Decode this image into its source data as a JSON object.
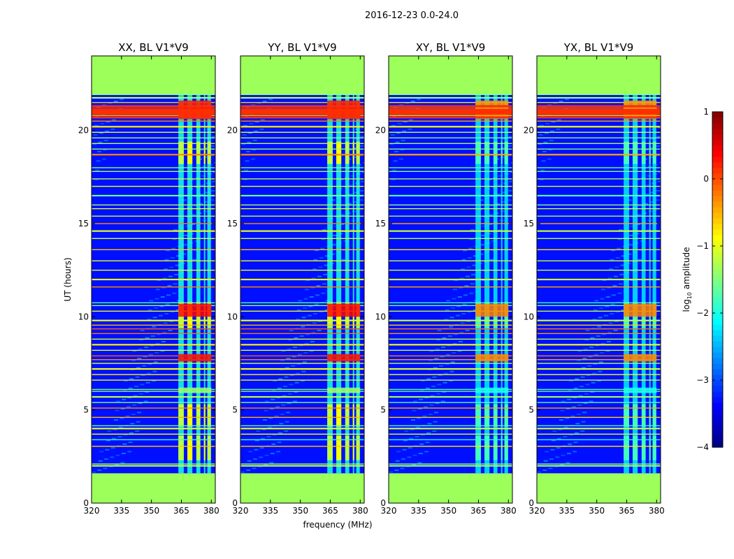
{
  "figure": {
    "suptitle": "2016-12-23 0.0-24.0"
  },
  "chart_data": {
    "type": "heatmap",
    "subtype": "waterfall / dynamic spectrum",
    "shared_xlabel": "frequency (MHz)",
    "shared_ylabel": "UT (hours)",
    "xlim": [
      320,
      382
    ],
    "ylim": [
      0,
      24
    ],
    "x_ticks": [
      320,
      335,
      350,
      365,
      380
    ],
    "y_ticks": [
      0,
      5,
      10,
      15,
      20
    ],
    "panels": [
      {
        "title": "XX, BL V1*V9"
      },
      {
        "title": "YY, BL V1*V9"
      },
      {
        "title": "XY, BL V1*V9"
      },
      {
        "title": "YX, BL V1*V9"
      }
    ],
    "colorbar": {
      "label": "log10 amplitude",
      "label_main": "log",
      "label_sub": "10",
      "label_rest": " amplitude",
      "range": [
        -4,
        1
      ],
      "ticks": [
        -4,
        -3,
        -2,
        -1,
        0,
        1
      ],
      "tick_labels": [
        "−4",
        "−3",
        "−2",
        "−1",
        "0",
        "1"
      ],
      "colormap": "jet"
    },
    "flagged_color": "#9cff5a",
    "flagged_ut_ranges": [
      [
        0,
        1.6
      ],
      [
        21.9,
        24
      ]
    ],
    "rfi_band_mhz": [
      363.5,
      380
    ],
    "background_level": -3.3
  }
}
